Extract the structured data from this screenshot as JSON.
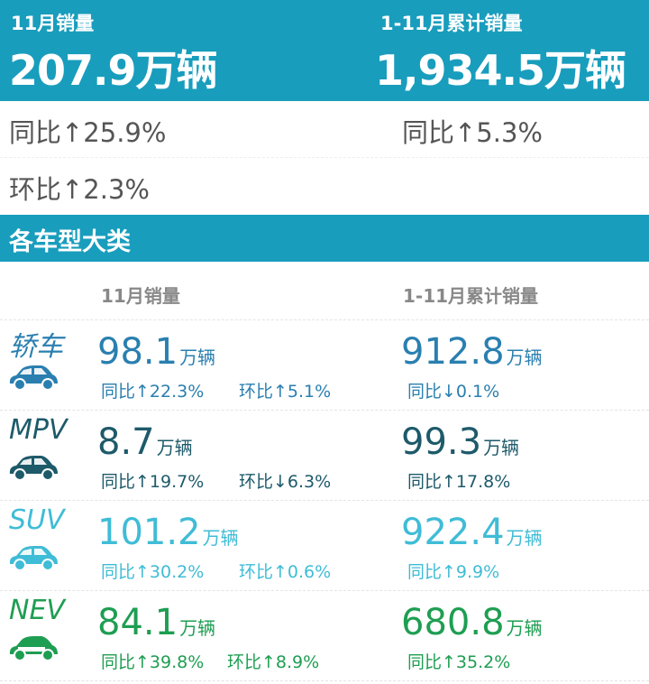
{
  "header": {
    "month_label": "11月销量",
    "month_value": "207.9万辆",
    "ytd_label": "1-11月累计销量",
    "ytd_value": "1,934.5万辆",
    "bg_color": "#199dbd"
  },
  "summary": {
    "month_yoy": "同比↑25.9%",
    "month_mom": "环比↑2.3%",
    "ytd_yoy": "同比↑5.3%"
  },
  "section": {
    "title": "各车型大类",
    "col_month": "11月销量",
    "col_ytd": "1-11月累计销量"
  },
  "categories": [
    {
      "name": "轿车",
      "icon": "sedan-icon",
      "color": "#2a7fb0",
      "month": "98.1",
      "unit": "万辆",
      "month_yoy": "同比↑22.3%",
      "month_mom": "环比↑5.1%",
      "ytd": "912.8",
      "ytd_yoy": "同比↓0.1%"
    },
    {
      "name": "MPV",
      "icon": "mpv-icon",
      "color": "#1d5a6a",
      "month": "8.7",
      "unit": "万辆",
      "month_yoy": "同比↑19.7%",
      "month_mom": "环比↓6.3%",
      "ytd": "99.3",
      "ytd_yoy": "同比↑17.8%"
    },
    {
      "name": "SUV",
      "icon": "suv-icon",
      "color": "#3fbcd6",
      "month": "101.2",
      "unit": "万辆",
      "month_yoy": "同比↑30.2%",
      "month_mom": "环比↑0.6%",
      "ytd": "922.4",
      "ytd_yoy": "同比↑9.9%"
    },
    {
      "name": "NEV",
      "icon": "nev-car-icon",
      "color": "#1e9e52",
      "month": "84.1",
      "unit": "万辆",
      "month_yoy": "同比↑39.8%",
      "month_mom": "环比↑8.9%",
      "ytd": "680.8",
      "ytd_yoy": "同比↑35.2%"
    }
  ]
}
